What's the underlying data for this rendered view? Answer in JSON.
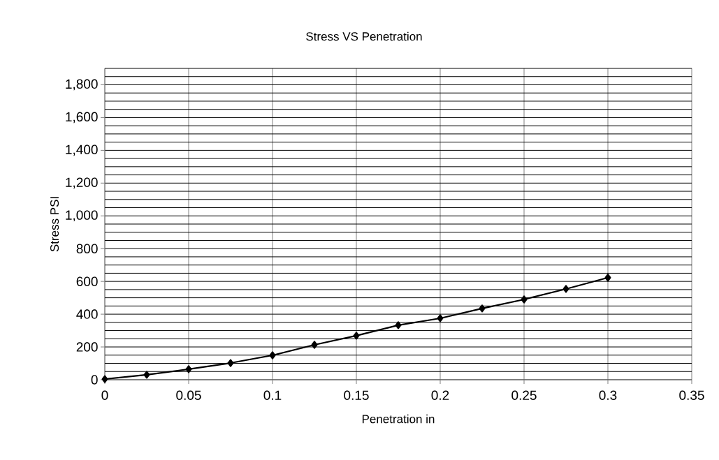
{
  "chart_data": {
    "type": "line",
    "title": "Stress VS Penetration",
    "xlabel": "Penetration  in",
    "ylabel": "Stress PSI",
    "series": [
      {
        "color": "#000000",
        "x": [
          0,
          0.025,
          0.05,
          0.075,
          0.1,
          0.125,
          0.15,
          0.175,
          0.2,
          0.225,
          0.25,
          0.275,
          0.3
        ],
        "values": [
          4,
          30,
          64,
          102,
          149,
          213,
          269,
          333,
          375,
          435,
          490,
          554,
          623
        ]
      }
    ],
    "xlim": [
      0,
      0.35
    ],
    "xticks": [
      0,
      0.05,
      0.1,
      0.15,
      0.2,
      0.25,
      0.3,
      0.35
    ],
    "ylim": [
      0,
      1900
    ],
    "yticks": [
      {
        "value": 0,
        "label": "0"
      },
      {
        "value": 50,
        "label": null
      },
      {
        "value": 100,
        "label": null
      },
      {
        "value": 150,
        "label": null
      },
      {
        "value": 200,
        "label": "200"
      },
      {
        "value": 250,
        "label": null
      },
      {
        "value": 300,
        "label": null
      },
      {
        "value": 350,
        "label": null
      },
      {
        "value": 400,
        "label": "400"
      },
      {
        "value": 450,
        "label": null
      },
      {
        "value": 500,
        "label": null
      },
      {
        "value": 550,
        "label": null
      },
      {
        "value": 600,
        "label": "600"
      },
      {
        "value": 650,
        "label": null
      },
      {
        "value": 700,
        "label": null
      },
      {
        "value": 750,
        "label": null
      },
      {
        "value": 800,
        "label": "800"
      },
      {
        "value": 850,
        "label": null
      },
      {
        "value": 900,
        "label": null
      },
      {
        "value": 950,
        "label": null
      },
      {
        "value": 1000,
        "label": "1,000"
      },
      {
        "value": 1050,
        "label": null
      },
      {
        "value": 1100,
        "label": null
      },
      {
        "value": 1150,
        "label": null
      },
      {
        "value": 1200,
        "label": "1,200"
      },
      {
        "value": 1250,
        "label": null
      },
      {
        "value": 1300,
        "label": null
      },
      {
        "value": 1350,
        "label": null
      },
      {
        "value": 1400,
        "label": "1,400"
      },
      {
        "value": 1450,
        "label": null
      },
      {
        "value": 1500,
        "label": null
      },
      {
        "value": 1550,
        "label": null
      },
      {
        "value": 1600,
        "label": "1,600"
      },
      {
        "value": 1650,
        "label": null
      },
      {
        "value": 1700,
        "label": null
      },
      {
        "value": 1750,
        "label": null
      },
      {
        "value": 1800,
        "label": "1,800"
      },
      {
        "value": 1850,
        "label": null
      },
      {
        "value": 1900,
        "label": null
      }
    ],
    "grid": true,
    "marker": "diamond",
    "line_style": "solid"
  }
}
